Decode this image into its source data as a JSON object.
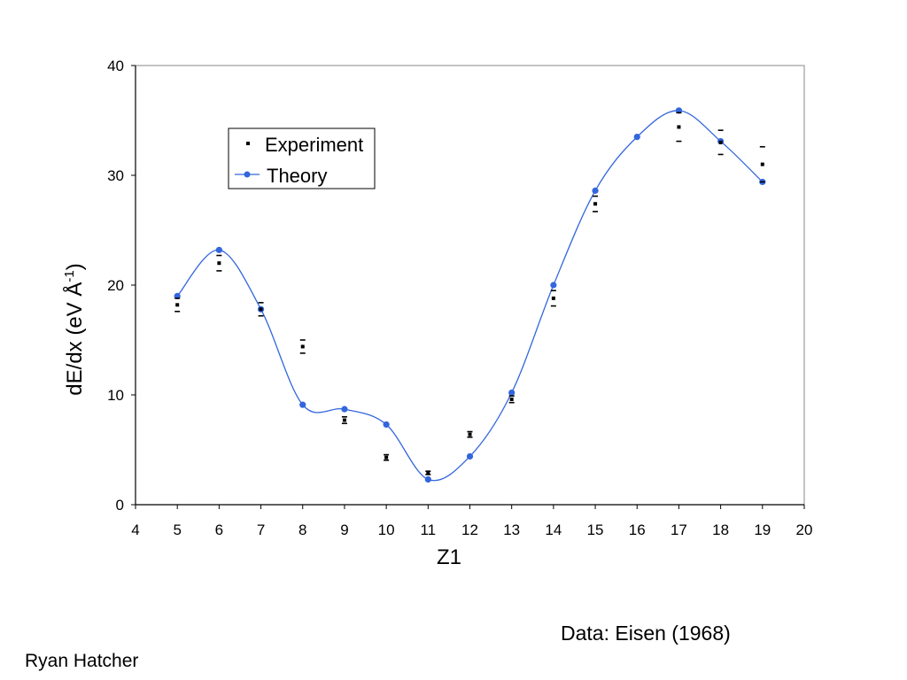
{
  "chart_data": {
    "type": "scatter",
    "xlabel": "Z1",
    "ylabel": "dE/dx (eV Å",
    "ylabel_sup": "-1",
    "ylabel_close": ")",
    "xlim": [
      4,
      20
    ],
    "ylim": [
      0,
      40
    ],
    "x_ticks": [
      "4",
      "5",
      "6",
      "7",
      "8",
      "9",
      "10",
      "11",
      "12",
      "13",
      "14",
      "15",
      "16",
      "17",
      "18",
      "19",
      "20"
    ],
    "y_ticks": [
      "0",
      "10",
      "20",
      "30",
      "40"
    ],
    "grid": false,
    "legend_position": "top-left",
    "series": [
      {
        "name": "Experiment",
        "kind": "errorbar",
        "color": "#000000",
        "points": [
          {
            "x": 5,
            "y": 18.2,
            "low": 17.6,
            "high": 18.8
          },
          {
            "x": 6,
            "y": 22.0,
            "low": 21.3,
            "high": 22.7
          },
          {
            "x": 7,
            "y": 17.8,
            "low": 17.2,
            "high": 18.4
          },
          {
            "x": 8,
            "y": 14.4,
            "low": 13.8,
            "high": 15.0
          },
          {
            "x": 9,
            "y": 7.7,
            "low": 7.4,
            "high": 8.0
          },
          {
            "x": 10,
            "y": 4.3,
            "low": 4.05,
            "high": 4.55
          },
          {
            "x": 11,
            "y": 2.9,
            "low": 2.75,
            "high": 3.05
          },
          {
            "x": 12,
            "y": 6.4,
            "low": 6.15,
            "high": 6.65
          },
          {
            "x": 13,
            "y": 9.6,
            "low": 9.3,
            "high": 9.9
          },
          {
            "x": 14,
            "y": 18.8,
            "low": 18.1,
            "high": 19.5
          },
          {
            "x": 15,
            "y": 27.4,
            "low": 26.7,
            "high": 28.1
          },
          {
            "x": 17,
            "y": 34.4,
            "low": 33.1,
            "high": 35.7
          },
          {
            "x": 18,
            "y": 33.0,
            "low": 31.9,
            "high": 34.1
          },
          {
            "x": 19,
            "y": 31.0,
            "low": 29.4,
            "high": 32.6
          }
        ]
      },
      {
        "name": "Theory",
        "kind": "smooth-line-markers",
        "color": "#3366dd",
        "x": [
          5,
          6,
          7,
          8,
          9,
          10,
          11,
          12,
          13,
          14,
          15,
          16,
          17,
          18,
          19
        ],
        "y": [
          19.0,
          23.2,
          17.8,
          9.1,
          8.7,
          7.3,
          2.3,
          4.4,
          10.2,
          20.0,
          28.6,
          33.5,
          35.9,
          33.1,
          29.4
        ]
      }
    ]
  },
  "notes": {
    "source": "Data: Eisen (1968)",
    "author": "Ryan Hatcher"
  }
}
